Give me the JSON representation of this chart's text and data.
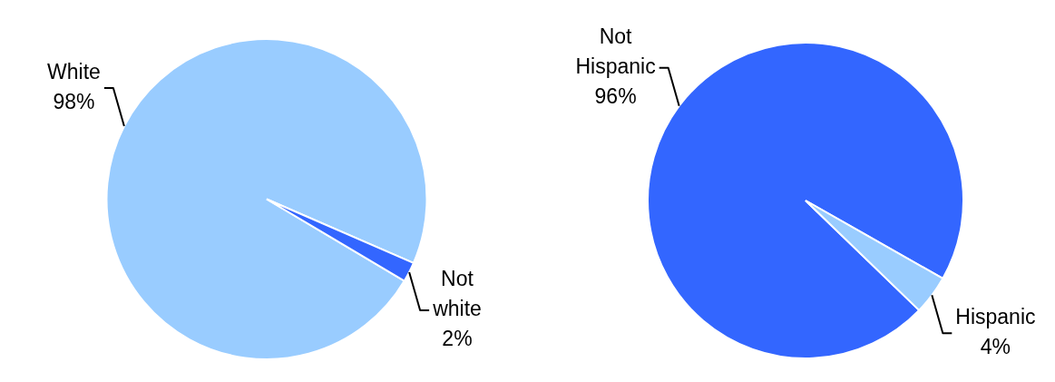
{
  "chart_data": [
    {
      "type": "pie",
      "categories": [
        "White",
        "Not white"
      ],
      "values": [
        98,
        2
      ],
      "colors": [
        "#99ccff",
        "#3366ff"
      ],
      "value_labels": [
        "98%",
        "2%"
      ]
    },
    {
      "type": "pie",
      "categories": [
        "Not Hispanic",
        "Hispanic"
      ],
      "values": [
        96,
        4
      ],
      "colors": [
        "#3366ff",
        "#99ccff"
      ],
      "value_labels": [
        "96%",
        "4%"
      ]
    }
  ]
}
